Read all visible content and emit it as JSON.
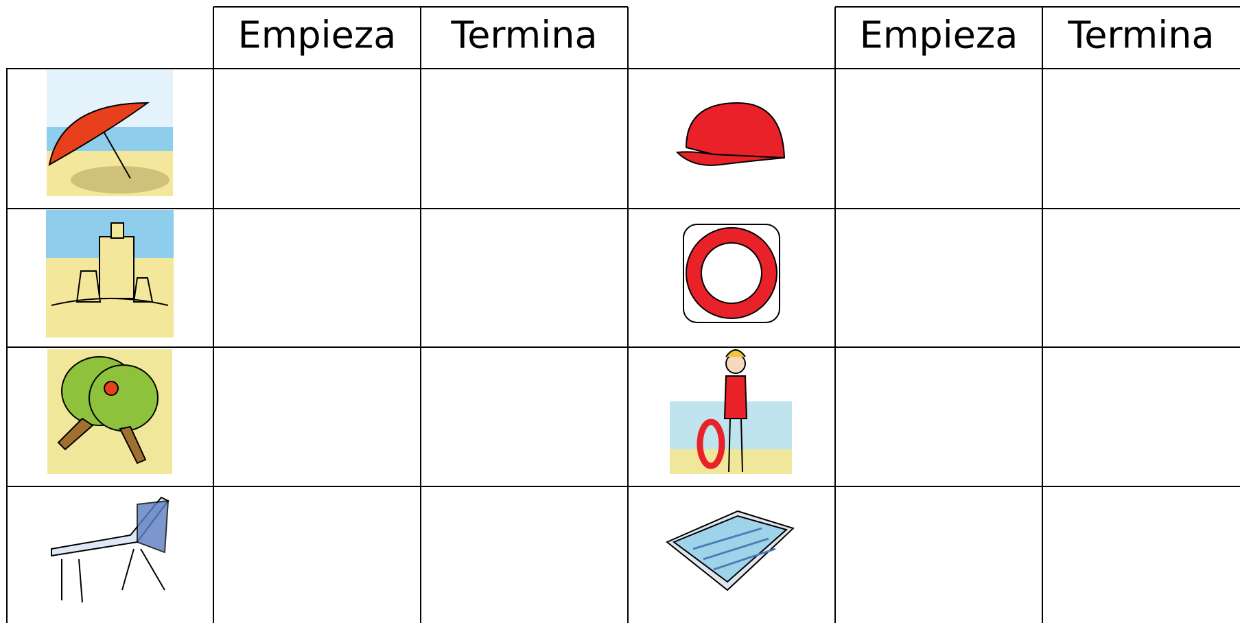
{
  "table": {
    "left_headers": [
      "Empieza",
      "Termina"
    ],
    "right_headers": [
      "Empieza",
      "Termina"
    ]
  }
}
